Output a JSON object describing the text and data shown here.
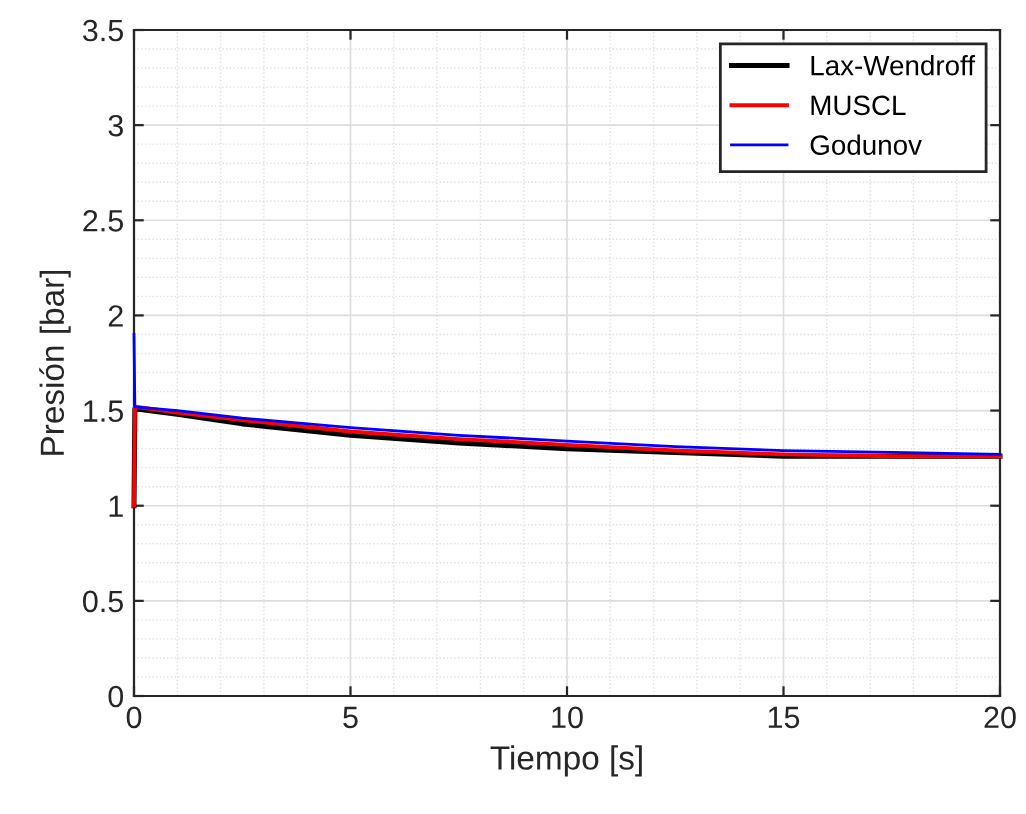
{
  "chart_data": {
    "type": "line",
    "xlabel": "Tiempo [s]",
    "ylabel": "Presión [bar]",
    "xlim": [
      0,
      20
    ],
    "ylim": [
      0,
      3.5
    ],
    "xticks": [
      0,
      5,
      10,
      15,
      20
    ],
    "yticks": [
      0,
      0.5,
      1,
      1.5,
      2,
      2.5,
      3,
      3.5
    ],
    "grid": true,
    "legend": "top right",
    "series": [
      {
        "name": "Lax-Wendroff",
        "color": "#000000",
        "x": [
          0,
          0.02,
          1,
          2.5,
          5,
          7.5,
          10,
          12.5,
          15,
          17.5,
          20
        ],
        "values": [
          1.0,
          1.51,
          1.48,
          1.43,
          1.37,
          1.33,
          1.3,
          1.28,
          1.26,
          1.26,
          1.26
        ]
      },
      {
        "name": "MUSCL",
        "color": "#ff0000",
        "x": [
          0,
          0.02,
          1,
          2.5,
          5,
          7.5,
          10,
          12.5,
          15,
          17.5,
          20
        ],
        "values": [
          1.0,
          1.52,
          1.49,
          1.45,
          1.39,
          1.35,
          1.32,
          1.29,
          1.27,
          1.26,
          1.26
        ]
      },
      {
        "name": "Godunov",
        "color": "#0000ff",
        "x": [
          0,
          0.02,
          1,
          2.5,
          5,
          7.5,
          10,
          12.5,
          15,
          17.5,
          20
        ],
        "values": [
          1.9,
          1.52,
          1.5,
          1.46,
          1.41,
          1.37,
          1.34,
          1.31,
          1.29,
          1.28,
          1.27
        ]
      }
    ]
  }
}
